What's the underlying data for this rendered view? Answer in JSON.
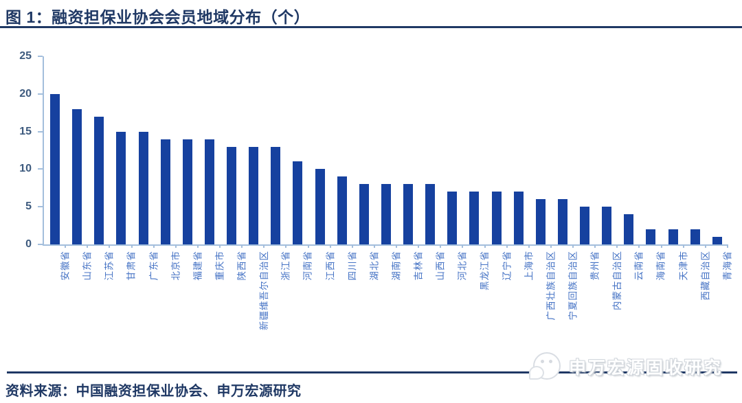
{
  "figure": {
    "title": "图 1：融资担保业协会会员地域分布（个）",
    "source": "资料来源：中国融资担保业协会、申万宏源研究",
    "watermark_text": "申万宏源固收研究",
    "watermark_logo": "sws-logo"
  },
  "colors": {
    "navy": "#1F3864",
    "bar": "#16419F",
    "axis": "#A3BEDC",
    "y_label": "#3D5A7E",
    "x_label": "#4472C4",
    "watermark_outline": "#D0D5DB"
  },
  "chart_data": {
    "type": "bar",
    "title": "融资担保业协会会员地域分布（个）",
    "categories": [
      "安徽省",
      "山东省",
      "江苏省",
      "甘肃省",
      "广东省",
      "北京市",
      "福建省",
      "重庆市",
      "陕西省",
      "新疆维吾尔自治区",
      "浙江省",
      "河南省",
      "江西省",
      "四川省",
      "湖北省",
      "湖南省",
      "吉林省",
      "山西省",
      "河北省",
      "黑龙江省",
      "辽宁省",
      "上海市",
      "广西壮族自治区",
      "宁夏回族自治区",
      "贵州省",
      "内蒙古自治区",
      "云南省",
      "海南省",
      "天津市",
      "西藏自治区",
      "青海省"
    ],
    "values": [
      20,
      18,
      17,
      15,
      15,
      14,
      14,
      14,
      13,
      13,
      13,
      11,
      10,
      9,
      8,
      8,
      8,
      8,
      7,
      7,
      7,
      7,
      6,
      6,
      5,
      5,
      4,
      2,
      2,
      2,
      1
    ],
    "xlabel": "",
    "ylabel": "",
    "ylim": [
      0,
      25
    ],
    "yticks": [
      0,
      5,
      10,
      15,
      20,
      25
    ],
    "grid": false,
    "legend": false,
    "x_label_rotation_deg": -90
  }
}
